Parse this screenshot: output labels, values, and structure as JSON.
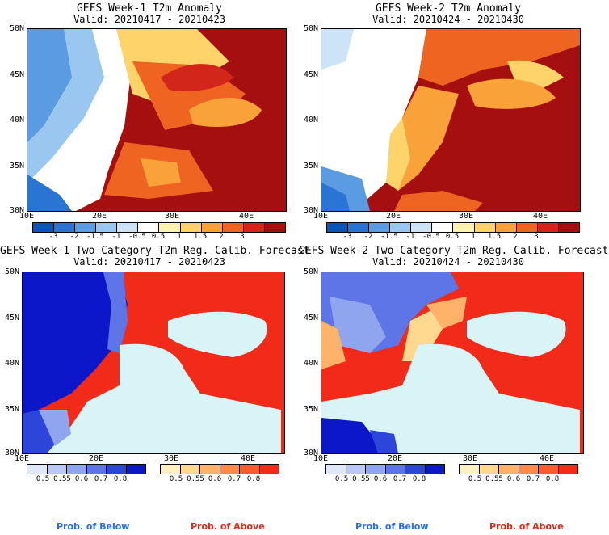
{
  "panels": [
    {
      "title": "GEFS Week-1 T2m Anomaly",
      "valid": "Valid: 20210417 - 20210423"
    },
    {
      "title": "GEFS Week-2 T2m Anomaly",
      "valid": "Valid: 20210424 - 20210430"
    },
    {
      "title": "GEFS Week-1 Two-Category T2m Reg. Calib. Forecast",
      "valid": "Valid: 20210417 - 20210423"
    },
    {
      "title": "GEFS Week-2 Two-Category T2m Reg. Calib. Forecast",
      "valid": "Valid: 20210424 - 20210430"
    }
  ],
  "lat_labels": [
    "50N",
    "45N",
    "40N",
    "35N",
    "30N"
  ],
  "lon_labels": [
    "10E",
    "20E",
    "30E",
    "40E"
  ],
  "anomaly_colorbar": {
    "labels": [
      "-3",
      "-2",
      "-1.5",
      "-1",
      "-0.5",
      "0.5",
      "1",
      "1.5",
      "2",
      "3"
    ],
    "colors": [
      "#0a55b8",
      "#2a74d4",
      "#5a9be2",
      "#9ac7ef",
      "#cde4f7",
      "#ffffff",
      "#fff3b0",
      "#fdd36a",
      "#f9a23a",
      "#ee6420",
      "#d2261a",
      "#a50f10"
    ]
  },
  "prob_below_colorbar": {
    "labels": [
      "0.5",
      "0.55",
      "0.6",
      "0.7",
      "0.8"
    ],
    "colors": [
      "#dfe7f9",
      "#b9c8f4",
      "#8fa5ee",
      "#5d75e6",
      "#2e45d9",
      "#0b17c8"
    ]
  },
  "prob_above_colorbar": {
    "labels": [
      "0.5",
      "0.55",
      "0.6",
      "0.7",
      "0.8"
    ],
    "colors": [
      "#fff0c4",
      "#ffd990",
      "#ffb36a",
      "#ff8a4a",
      "#ff5a2e",
      "#f12a1a"
    ]
  },
  "prob_below_label": "Prob. of Below",
  "prob_above_label": "Prob. of Above",
  "colors": {
    "sea_light": "#d8f4f6",
    "land_line": "#000000",
    "prob_below_text": "#2a6ee3",
    "prob_above_text": "#e02a1a"
  }
}
